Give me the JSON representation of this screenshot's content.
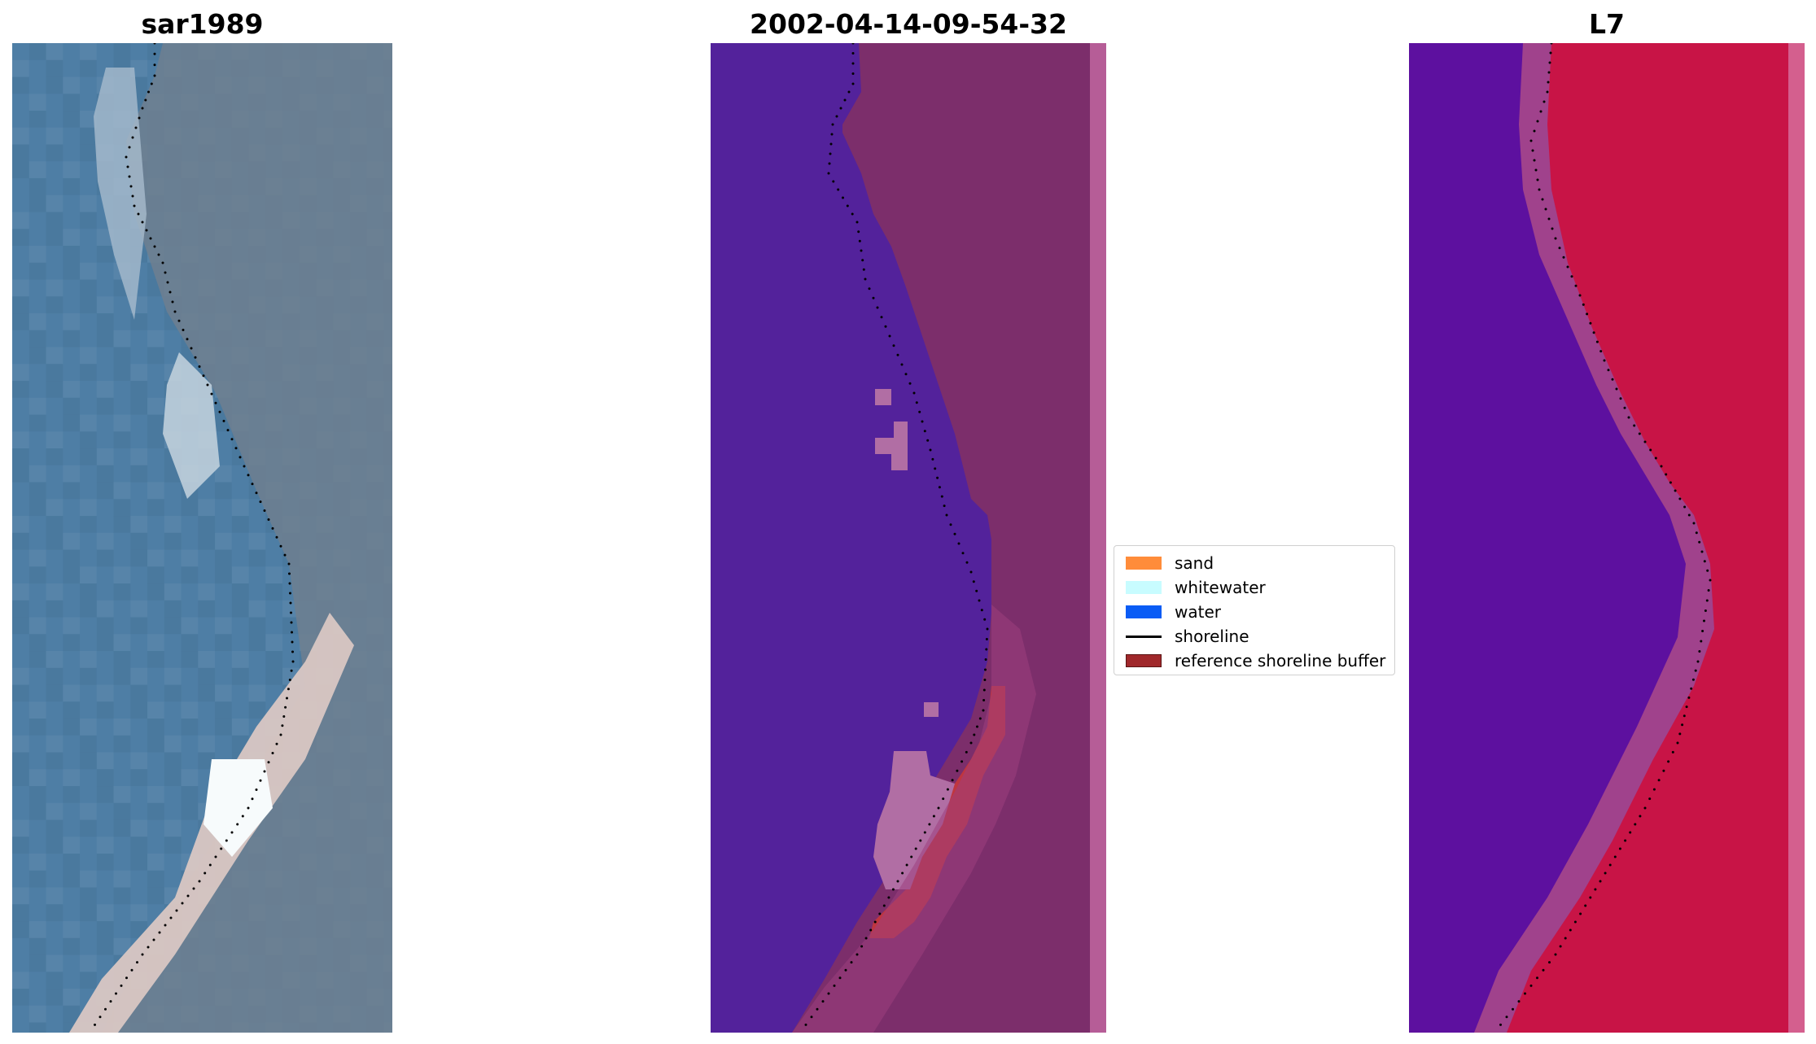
{
  "panels": [
    {
      "title": "sar1989"
    },
    {
      "title": "2002-04-14-09-54-32"
    },
    {
      "title": "L7"
    }
  ],
  "legend": {
    "items": [
      {
        "label": "sand",
        "color": "#ff8c3a",
        "kind": "patch"
      },
      {
        "label": "whitewater",
        "color": "#c8fcff",
        "kind": "patch"
      },
      {
        "label": "water",
        "color": "#0a5cf5",
        "kind": "patch"
      },
      {
        "label": "shoreline",
        "color": "#000000",
        "kind": "line"
      },
      {
        "label": "reference shoreline buffer",
        "color": "#a0282b",
        "kind": "patch-outlined"
      }
    ]
  },
  "colors": {
    "sar_water": "#4a7aa0",
    "sar_land": "#6f7f8e",
    "sar_beach": "#d8c8c4",
    "classified_water": "#53229b",
    "classified_land": "#7d2f6c",
    "classified_buffer": "#c0363f",
    "classified_sliver": "#b65d97",
    "l7_water": "#5a0ea0",
    "l7_land": "#c81446",
    "shoreline_dots": "#000000"
  }
}
